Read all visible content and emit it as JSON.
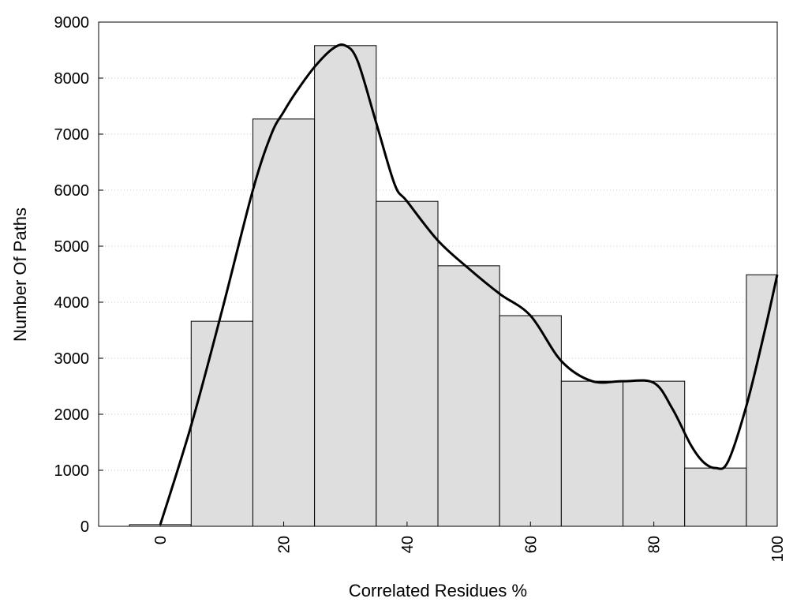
{
  "chart_data": {
    "type": "bar",
    "xlabel": "Correlated Residues %",
    "ylabel": "Number Of Paths",
    "xlim": [
      -10,
      100
    ],
    "ylim": [
      0,
      9000
    ],
    "x_ticks": [
      "0",
      "20",
      "40",
      "60",
      "80",
      "100"
    ],
    "y_ticks": [
      "0",
      "1000",
      "2000",
      "3000",
      "4000",
      "5000",
      "6000",
      "7000",
      "8000",
      "9000"
    ],
    "grid": "horizontal dotted",
    "bar_width": 10,
    "bars": {
      "x": [
        0,
        10,
        20,
        30,
        40,
        50,
        60,
        70,
        80,
        90,
        100
      ],
      "values": [
        30,
        3660,
        7270,
        8580,
        5800,
        4650,
        3760,
        2590,
        2590,
        1040,
        4490
      ]
    },
    "curve": {
      "type": "line",
      "x": [
        0,
        5,
        10,
        15,
        18,
        20,
        22,
        25,
        28,
        30,
        32,
        35,
        38,
        40,
        45,
        50,
        55,
        60,
        65,
        70,
        75,
        80,
        83,
        86,
        88,
        90,
        92,
        95,
        98,
        100
      ],
      "y": [
        30,
        1800,
        3850,
        6000,
        7000,
        7400,
        7750,
        8200,
        8530,
        8580,
        8300,
        7200,
        6100,
        5800,
        5100,
        4600,
        4150,
        3760,
        2950,
        2590,
        2590,
        2560,
        2100,
        1450,
        1150,
        1040,
        1150,
        2150,
        3500,
        4490
      ]
    },
    "colors": {
      "bar_fill": "#dedede",
      "bar_stroke": "#000000",
      "curve": "#000000",
      "grid": "#c8c8c8"
    }
  }
}
